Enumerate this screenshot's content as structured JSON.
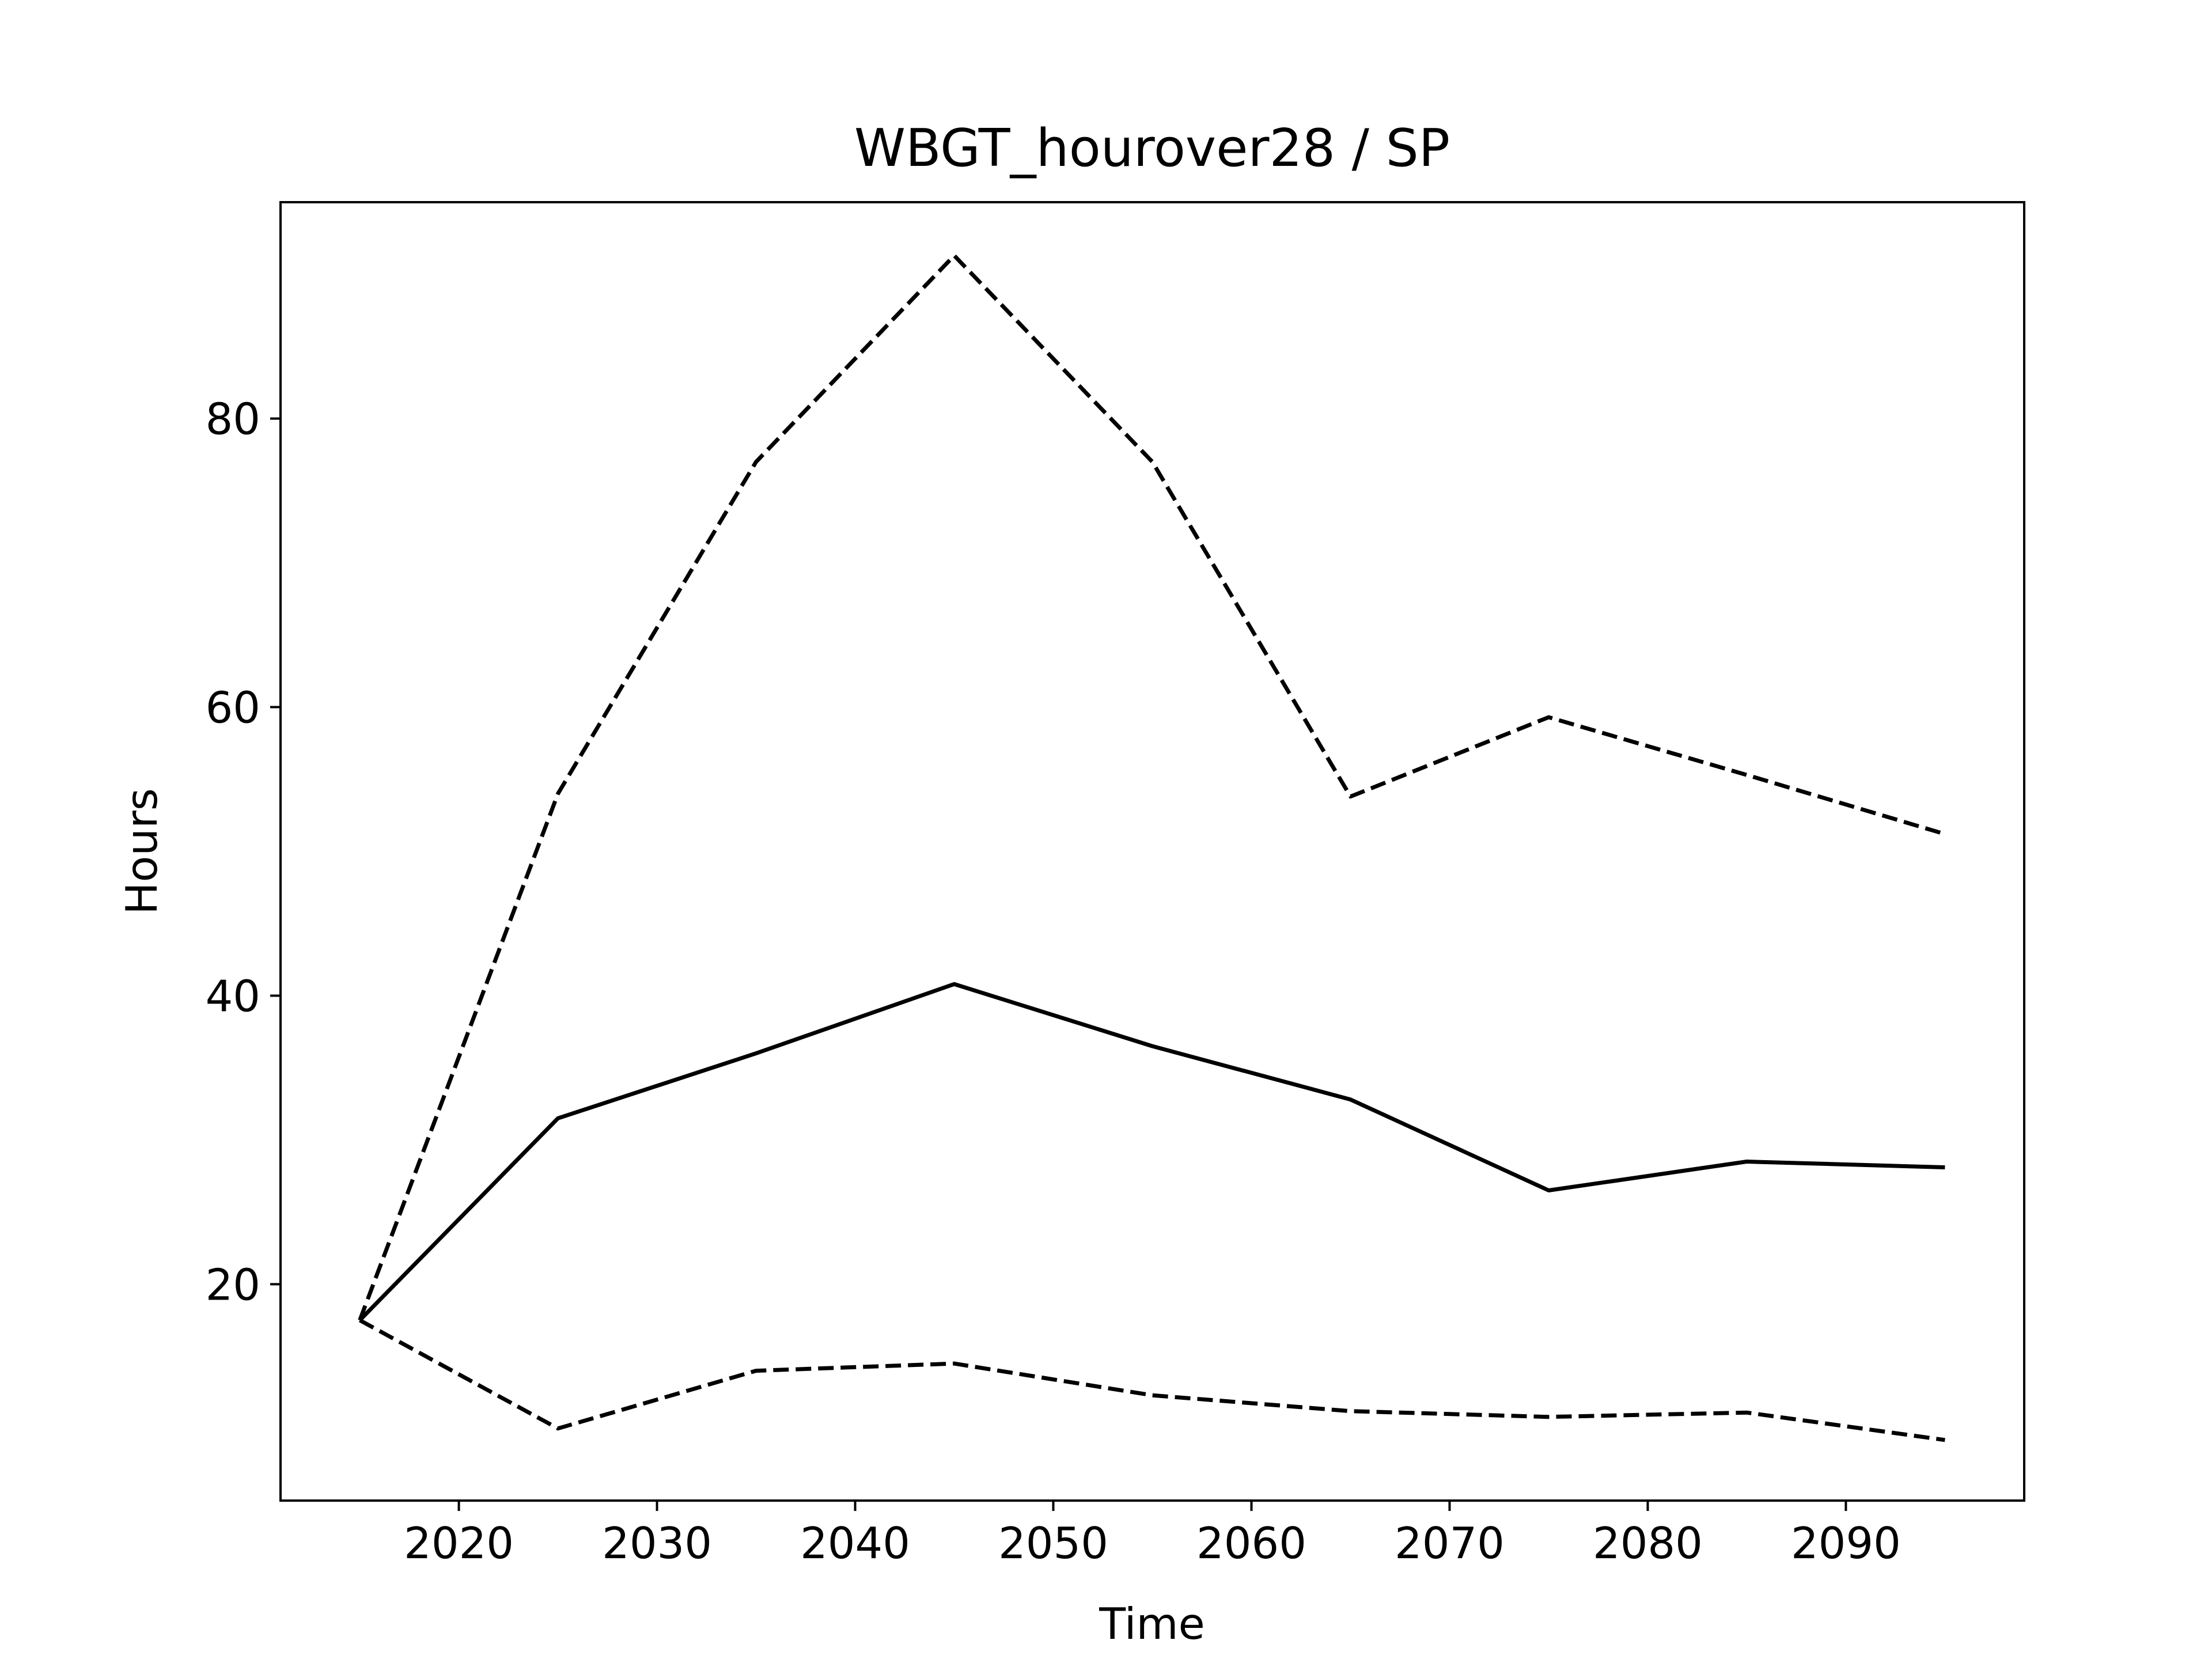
{
  "chart_data": {
    "type": "line",
    "title": "WBGT_hourover28 / SP",
    "xlabel": "Time",
    "ylabel": "Hours",
    "x": [
      2015,
      2025,
      2035,
      2045,
      2055,
      2065,
      2075,
      2085,
      2095
    ],
    "series": [
      {
        "style": "solid",
        "color": "#000000",
        "values": [
          17.5,
          31.5,
          36.0,
          40.8,
          36.5,
          32.8,
          26.5,
          28.5,
          28.1
        ]
      },
      {
        "style": "dashed",
        "color": "#000000",
        "values": [
          17.5,
          54.0,
          77.0,
          91.3,
          77.0,
          53.8,
          59.3,
          55.3,
          51.2
        ]
      },
      {
        "style": "dashed",
        "color": "#000000",
        "values": [
          17.5,
          10.0,
          14.0,
          14.5,
          12.3,
          11.2,
          10.8,
          11.1,
          9.2
        ]
      }
    ],
    "xlim": [
      2011,
      2099
    ],
    "ylim": [
      5,
      95
    ],
    "xticks": [
      2020,
      2030,
      2040,
      2050,
      2060,
      2070,
      2080,
      2090
    ],
    "yticks": [
      20,
      40,
      60,
      80
    ],
    "grid": false,
    "legend": "none"
  }
}
